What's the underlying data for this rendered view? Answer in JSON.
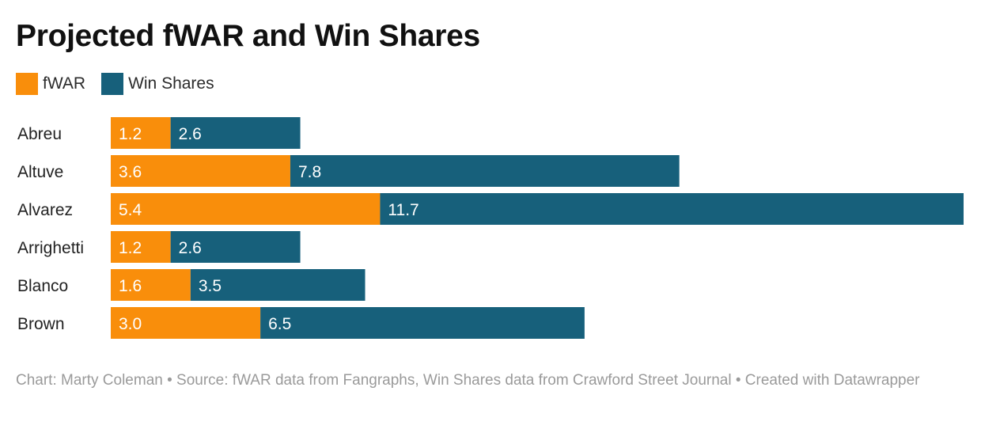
{
  "title": "Projected fWAR and Win Shares",
  "legend": [
    {
      "label": "fWAR",
      "color": "#f98e0b"
    },
    {
      "label": "Win Shares",
      "color": "#17607b"
    }
  ],
  "chart_data": {
    "type": "bar",
    "orientation": "horizontal",
    "stacked": true,
    "categories": [
      "Abreu",
      "Altuve",
      "Alvarez",
      "Arrighetti",
      "Blanco",
      "Brown"
    ],
    "series": [
      {
        "name": "fWAR",
        "color": "#f98e0b",
        "values": [
          1.2,
          3.6,
          5.4,
          1.2,
          1.6,
          3.0
        ]
      },
      {
        "name": "Win Shares",
        "color": "#17607b",
        "values": [
          2.6,
          7.8,
          11.7,
          2.6,
          3.5,
          6.5
        ]
      }
    ],
    "title": "Projected fWAR and Win Shares",
    "xlabel": "",
    "ylabel": "",
    "grid": false,
    "legend_position": "top-left"
  },
  "footer": "Chart: Marty Coleman • Source: fWAR data from Fangraphs, Win Shares data from Crawford Street Journal • Created with Datawrapper"
}
